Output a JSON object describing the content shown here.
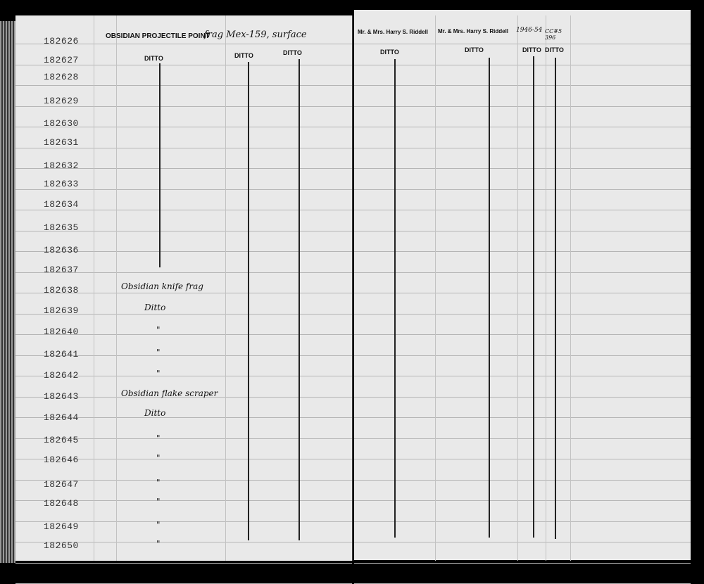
{
  "catalog_numbers": [
    "182626",
    "182627",
    "182628",
    "182629",
    "182630",
    "182631",
    "182632",
    "182633",
    "182634",
    "182635",
    "182636",
    "182637",
    "182638",
    "182639",
    "182640",
    "182641",
    "182642",
    "182643",
    "182644",
    "182645",
    "182646",
    "182647",
    "182648",
    "182649",
    "182650"
  ],
  "first_entry": {
    "printed": "OBSIDIAN PROJECTILE POINT",
    "handwritten": "frag Mex-159, surface"
  },
  "ditto": "DITTO",
  "donor_1": "Mr. & Mrs. Harry S. Riddell",
  "donor_2": "Mr. & Mrs. Harry S. Riddell",
  "accession_year": "1946-54",
  "accession_no": "CC#5 396",
  "entries": {
    "knife": "Obsidian knife frag",
    "ditto_hand": "Ditto",
    "ditto_mark": "\"",
    "scraper": "Obsidian flake scraper"
  }
}
